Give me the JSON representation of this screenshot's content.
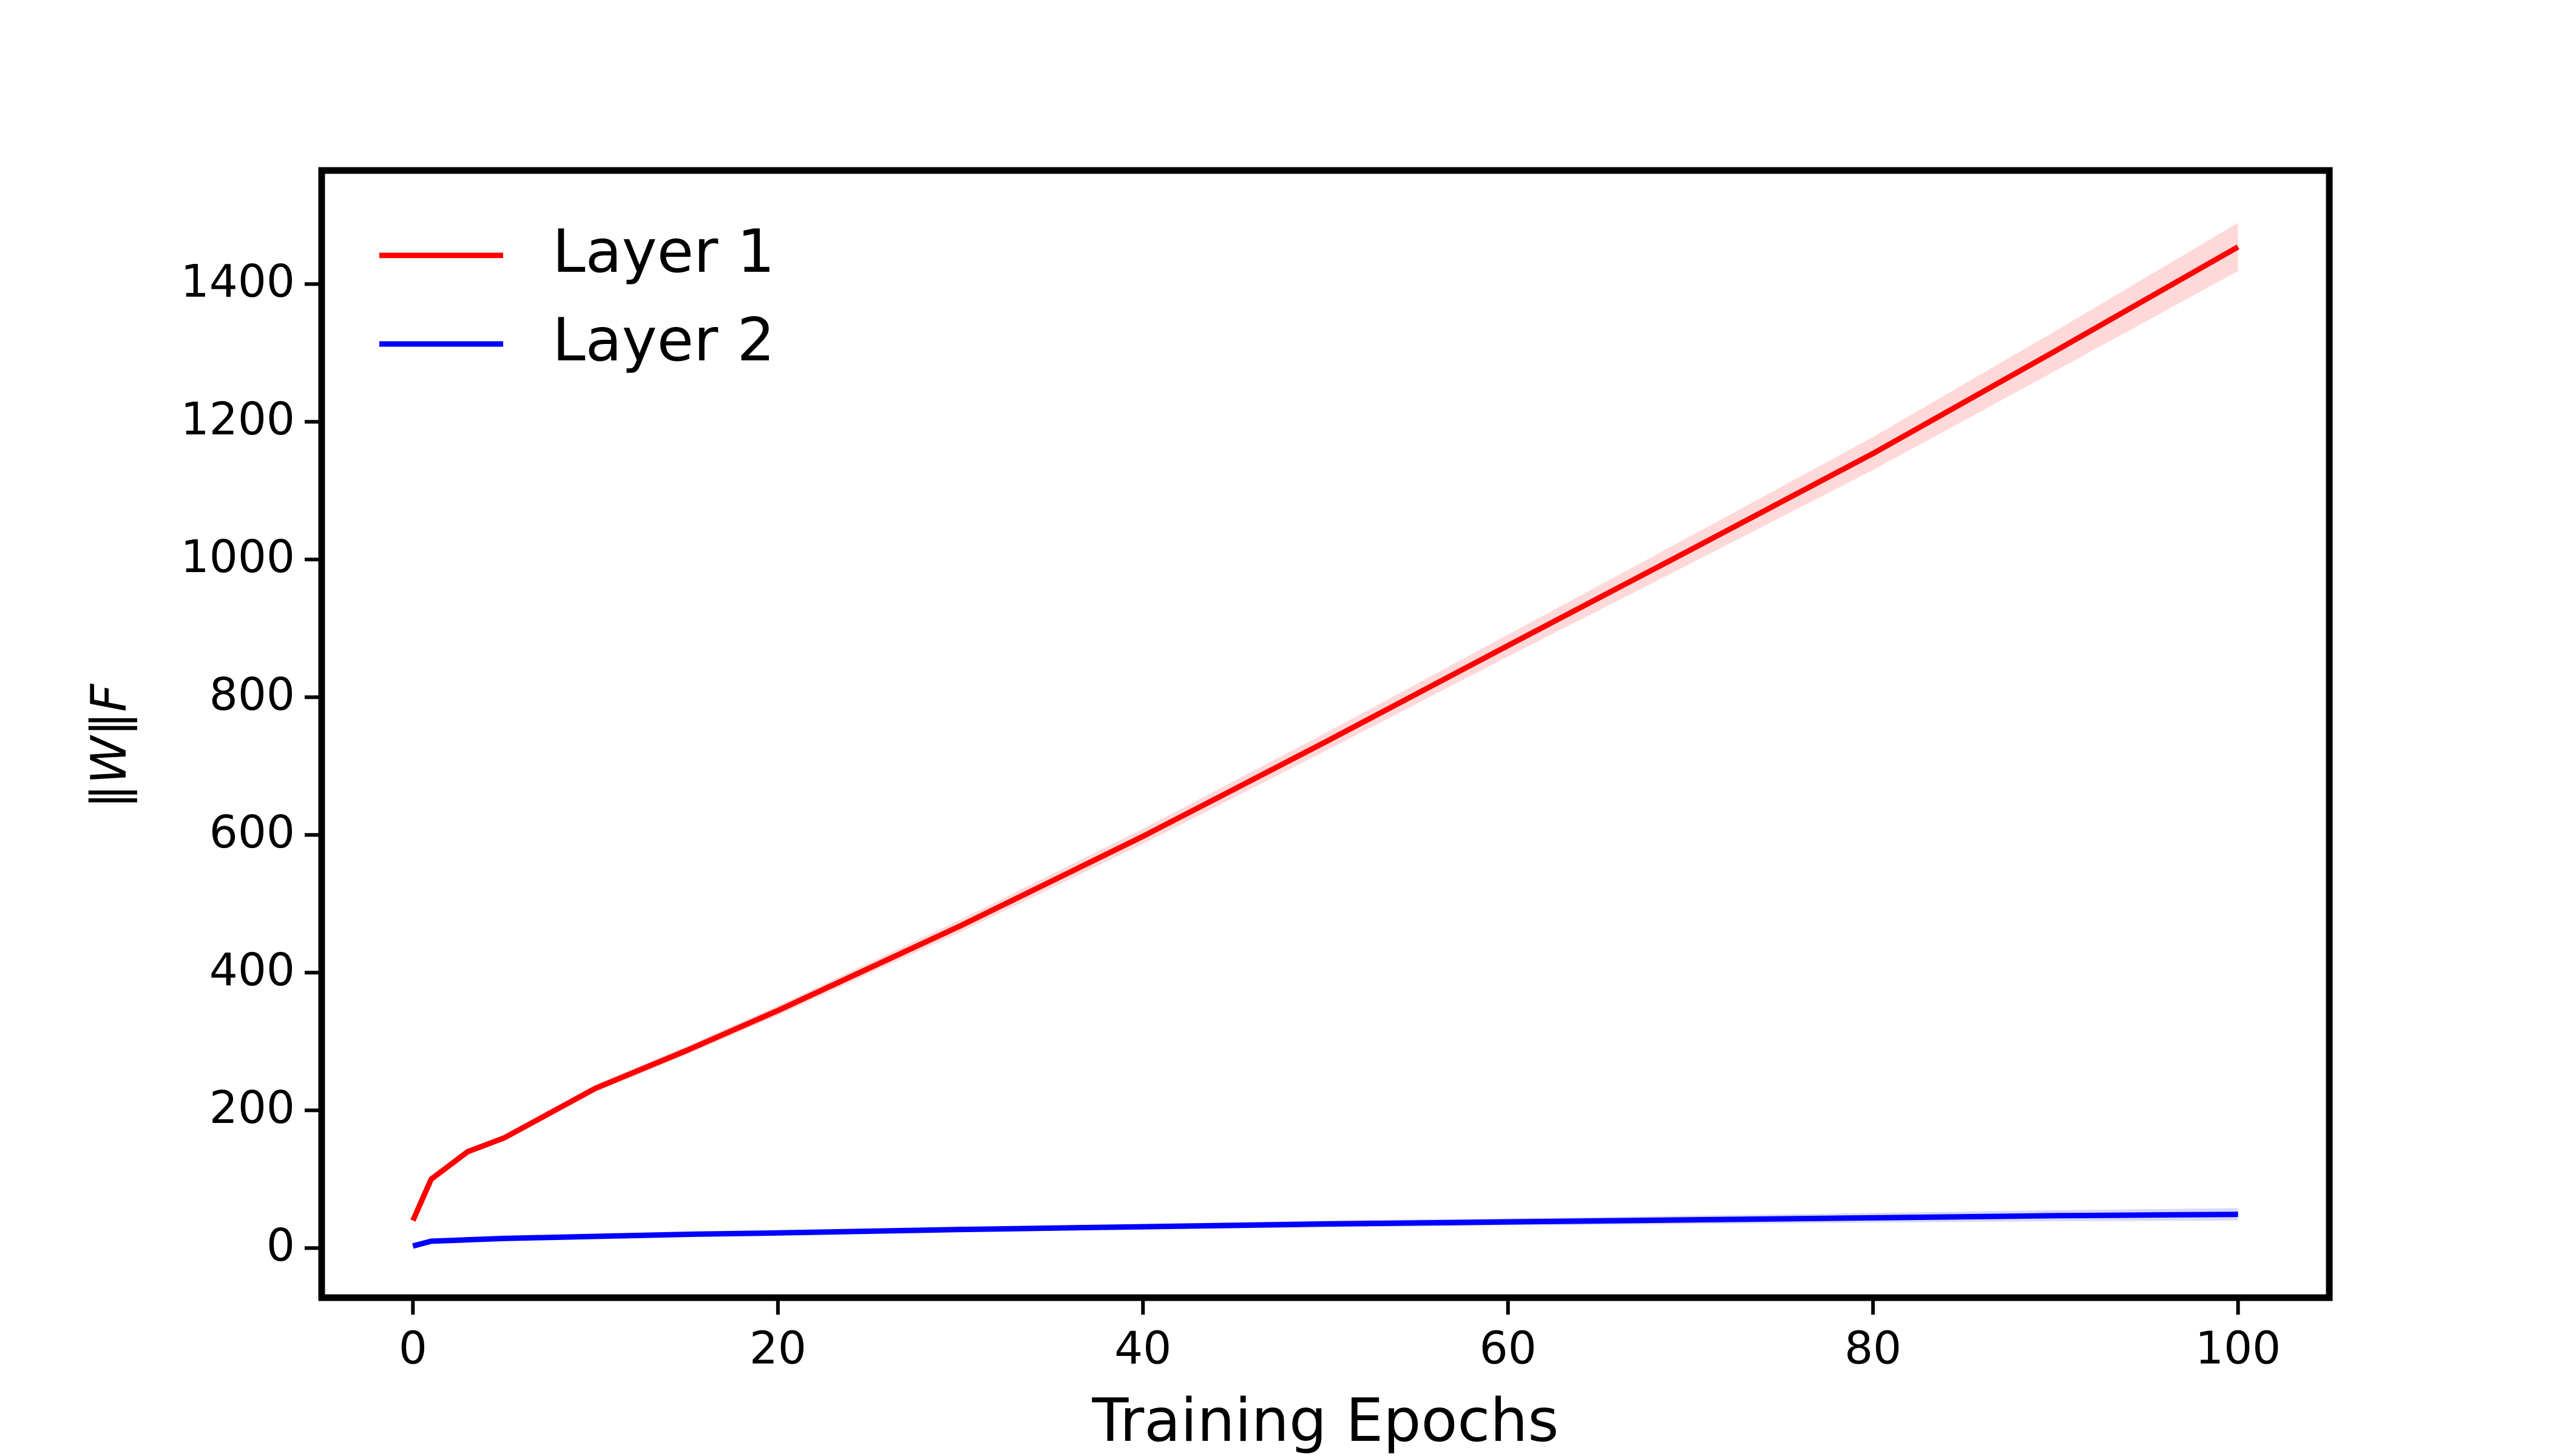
{
  "chart_data": {
    "type": "line",
    "x_label": "Training Epochs",
    "y_label": "‖W‖F",
    "x": [
      0,
      1,
      3,
      5,
      10,
      15,
      20,
      30,
      40,
      50,
      60,
      70,
      80,
      90,
      100
    ],
    "series": [
      {
        "name": "Layer 1",
        "color": "#ff0000",
        "values": [
          40,
          100,
          140,
          160,
          232,
          287,
          345,
          468,
          598,
          735,
          875,
          1014,
          1154,
          1303,
          1454
        ],
        "error": [
          2,
          3,
          3,
          4,
          5,
          6,
          7,
          9,
          11,
          13,
          16,
          20,
          24,
          29,
          35
        ]
      },
      {
        "name": "Layer 2",
        "color": "#0000ff",
        "values": [
          3,
          10,
          12,
          14,
          17,
          20,
          22,
          27,
          31,
          35,
          38,
          41,
          44,
          47,
          49
        ],
        "error": [
          1,
          1,
          1,
          1,
          2,
          2,
          2,
          3,
          4,
          5,
          5,
          6,
          7,
          8,
          9
        ]
      }
    ],
    "xlim": [
      -5,
      105
    ],
    "ylim": [
      -72,
      1565
    ],
    "xticks": [
      0,
      20,
      40,
      60,
      80,
      100
    ],
    "yticks": [
      0,
      200,
      400,
      600,
      800,
      1000,
      1200,
      1400
    ],
    "legend": "upper-left",
    "grid": false
  }
}
